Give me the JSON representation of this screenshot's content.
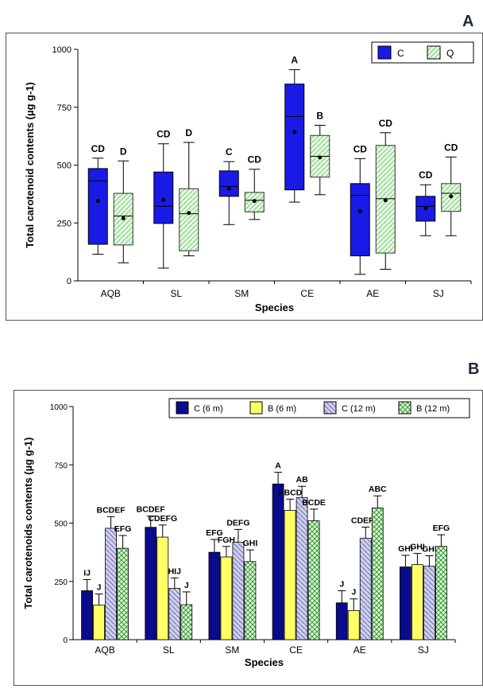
{
  "chart_data": [
    {
      "panel": "A",
      "type": "box",
      "xlabel": "Species",
      "ylabel": "Total carotenoid contents (µg g-1)",
      "ylim": [
        0,
        1000
      ],
      "yticks": [
        "0",
        "250",
        "500",
        "750",
        "1000"
      ],
      "categories": [
        "AQB",
        "SL",
        "SM",
        "CE",
        "AE",
        "SJ"
      ],
      "legend": [
        "C",
        "Q"
      ],
      "colors": {
        "C": "#1a1ae6",
        "Q": "#6fcf6f",
        "Q_fill": "#e8f6e4"
      },
      "series": [
        {
          "name": "C",
          "boxes": [
            {
              "min": 115,
              "q1": 158,
              "median": 432,
              "q3": 485,
              "max": 530,
              "mean": 345,
              "letter": "CD"
            },
            {
              "min": 55,
              "q1": 248,
              "median": 322,
              "q3": 470,
              "max": 592,
              "mean": 350,
              "letter": "CD"
            },
            {
              "min": 243,
              "q1": 365,
              "median": 408,
              "q3": 475,
              "max": 515,
              "mean": 398,
              "letter": "C"
            },
            {
              "min": 340,
              "q1": 393,
              "median": 710,
              "q3": 850,
              "max": 912,
              "mean": 643,
              "letter": "A"
            },
            {
              "min": 28,
              "q1": 108,
              "median": 370,
              "q3": 420,
              "max": 528,
              "mean": 300,
              "letter": "CD"
            },
            {
              "min": 195,
              "q1": 258,
              "median": 322,
              "q3": 365,
              "max": 415,
              "mean": 313,
              "letter": "CD"
            }
          ]
        },
        {
          "name": "Q",
          "boxes": [
            {
              "min": 78,
              "q1": 155,
              "median": 280,
              "q3": 378,
              "max": 518,
              "mean": 270,
              "letter": "D"
            },
            {
              "min": 108,
              "q1": 130,
              "median": 290,
              "q3": 398,
              "max": 598,
              "mean": 293,
              "letter": "D"
            },
            {
              "min": 265,
              "q1": 298,
              "median": 348,
              "q3": 382,
              "max": 482,
              "mean": 345,
              "letter": "CD"
            },
            {
              "min": 372,
              "q1": 448,
              "median": 538,
              "q3": 628,
              "max": 672,
              "mean": 533,
              "letter": "B"
            },
            {
              "min": 50,
              "q1": 120,
              "median": 355,
              "q3": 585,
              "max": 640,
              "mean": 348,
              "letter": "CD"
            },
            {
              "min": 195,
              "q1": 300,
              "median": 378,
              "q3": 420,
              "max": 535,
              "mean": 365,
              "letter": "CD"
            }
          ]
        }
      ]
    },
    {
      "panel": "B",
      "type": "bar",
      "xlabel": "Species",
      "ylabel": "Total carotenoids contents (µg g-1)",
      "ylim": [
        0,
        1000
      ],
      "yticks": [
        "0",
        "250",
        "500",
        "750",
        "1000"
      ],
      "categories": [
        "AQB",
        "SL",
        "SM",
        "CE",
        "AE",
        "SJ"
      ],
      "legend": [
        "C (6 m)",
        "B (6 m)",
        "C (12 m)",
        "B (12 m)"
      ],
      "colors": {
        "s0": "#0a0a8c",
        "s1": "#ffff66",
        "s2": "#d0d0ee",
        "s3": "#6fcf6f",
        "s3_fill": "#e6f6e0"
      },
      "series": [
        {
          "name": "C (6 m)",
          "values": [
            210,
            482,
            375,
            668,
            158,
            312
          ],
          "errors": [
            48,
            48,
            55,
            50,
            52,
            50
          ],
          "letters": [
            "IJ",
            "BCDEF",
            "EFG",
            "A",
            "J",
            "GHI"
          ]
        },
        {
          "name": "B (6 m)",
          "values": [
            148,
            440,
            355,
            555,
            125,
            322
          ],
          "errors": [
            48,
            52,
            45,
            48,
            50,
            48
          ],
          "letters": [
            "J",
            "CDEFG",
            "FGH",
            "ABCD",
            "J",
            "GHI"
          ]
        },
        {
          "name": "C (12 m)",
          "values": [
            478,
            220,
            418,
            610,
            435,
            315
          ],
          "errors": [
            50,
            45,
            55,
            48,
            48,
            45
          ],
          "letters": [
            "BCDEF",
            "HIJ",
            "DEFG",
            "AB",
            "CDEFG",
            "GHI"
          ]
        },
        {
          "name": "B (12 m)",
          "values": [
            392,
            150,
            335,
            510,
            565,
            400
          ],
          "errors": [
            55,
            55,
            50,
            50,
            52,
            50
          ],
          "letters": [
            "EFG",
            "J",
            "GHI",
            "BCDE",
            "ABC",
            "EFG"
          ]
        }
      ]
    }
  ]
}
